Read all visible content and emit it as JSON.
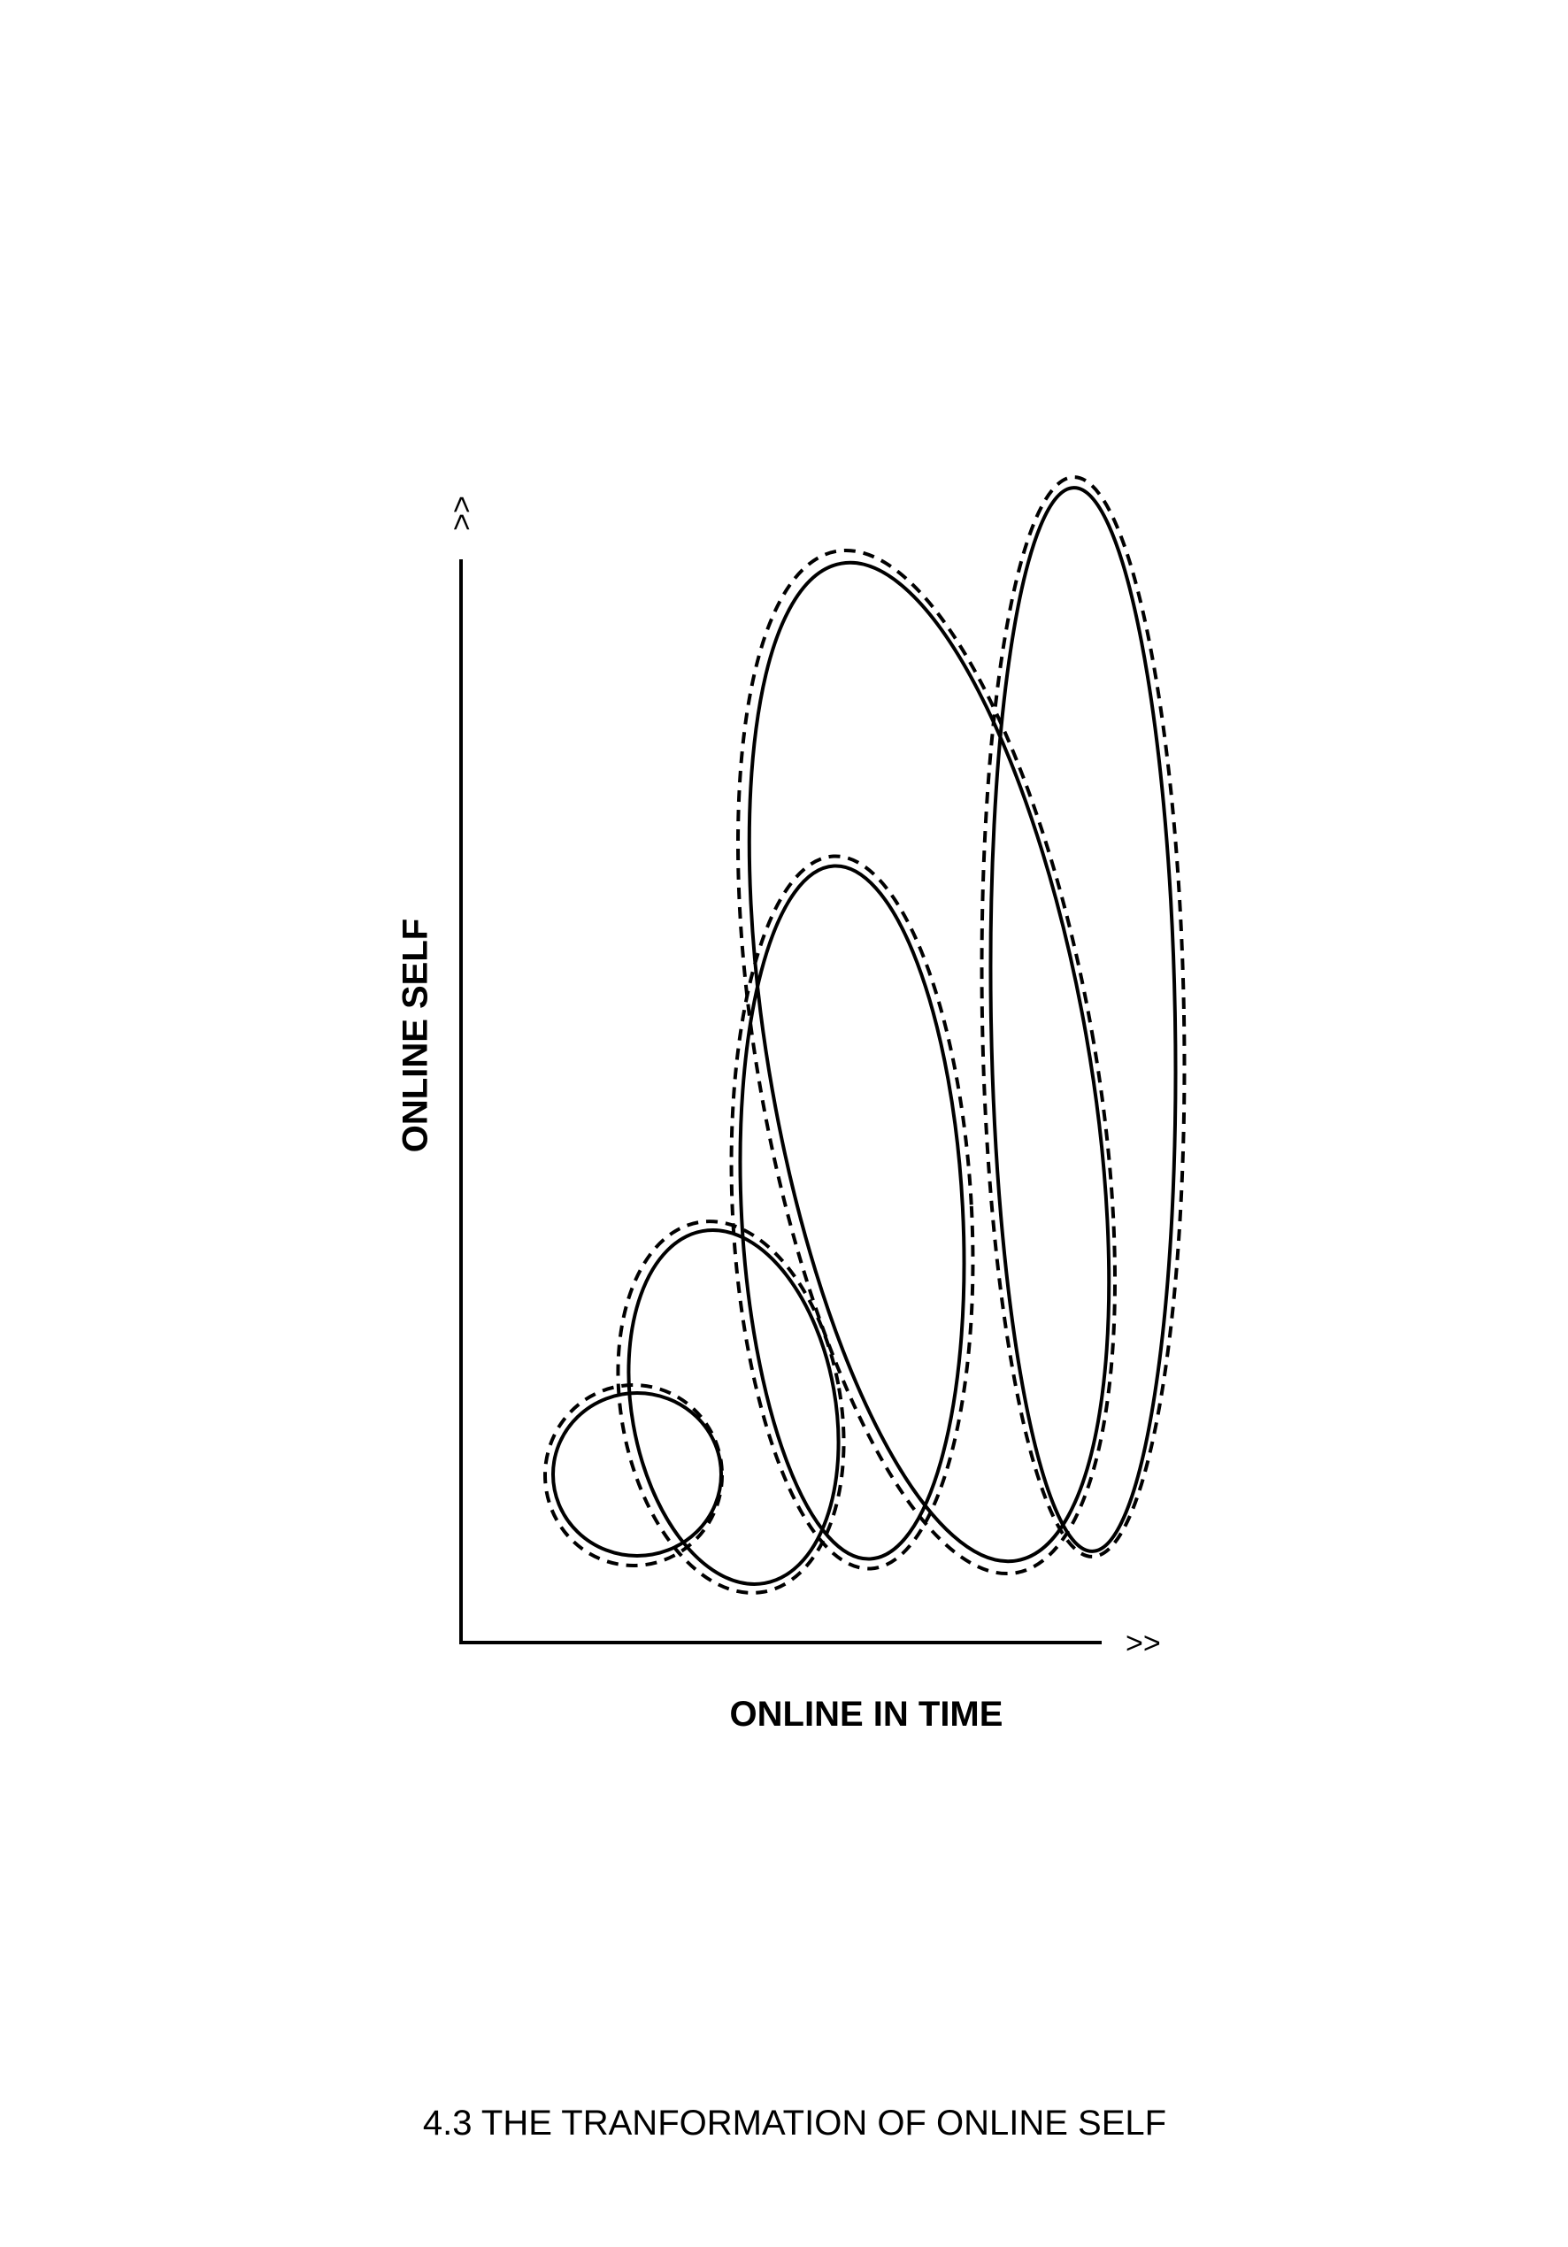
{
  "diagram": {
    "title": "4.3 THE TRANFORMATION OF ONLINE SELF",
    "x_axis": {
      "label": "ONLINE IN TIME",
      "arrow": ">>"
    },
    "y_axis": {
      "label": "ONLINE SELF",
      "arrow": ">>"
    },
    "stages": [
      {
        "name": "stage-1",
        "outline": "solid with dashed offset"
      },
      {
        "name": "stage-2",
        "outline": "solid with dashed offset"
      },
      {
        "name": "stage-3",
        "outline": "solid with dashed offset"
      },
      {
        "name": "stage-4",
        "outline": "solid with dashed offset"
      },
      {
        "name": "stage-5",
        "outline": "solid with dashed offset"
      }
    ]
  },
  "colors": {
    "line": "#000000",
    "background": "#ffffff"
  }
}
